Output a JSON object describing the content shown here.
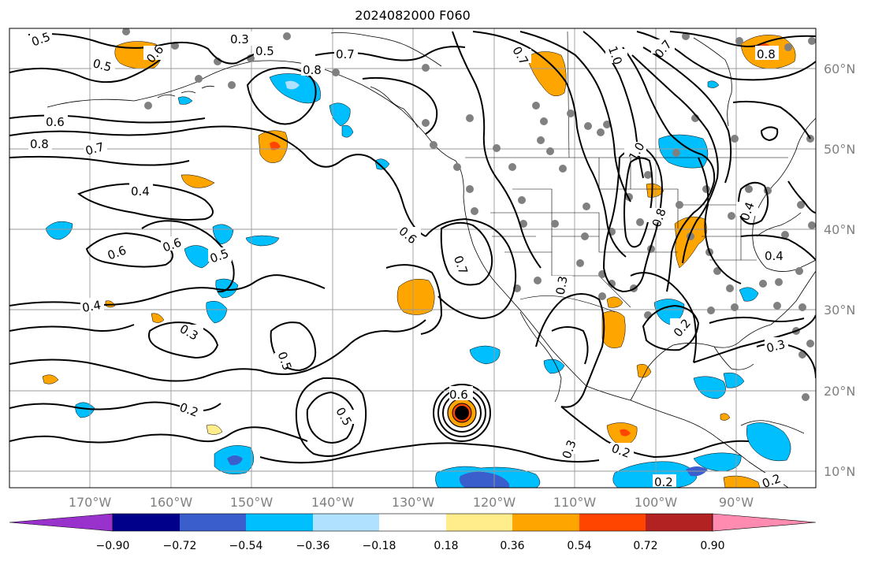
{
  "title": "2024082000 F060",
  "lat_labels": [
    "60°N",
    "50°N",
    "40°N",
    "30°N",
    "20°N",
    "10°N"
  ],
  "lon_labels": [
    "170°W",
    "160°W",
    "150°W",
    "140°W",
    "130°W",
    "120°W",
    "110°W",
    "100°W",
    "90°W"
  ],
  "colorbar": {
    "tick_labels": [
      "−0.90",
      "−0.72",
      "−0.54",
      "−0.36",
      "−0.18",
      "0.18",
      "0.36",
      "0.54",
      "0.72",
      "0.90"
    ],
    "colors": [
      "#9932CC",
      "#00008B",
      "#3A5FCD",
      "#00BFFF",
      "#B0E2FF",
      "#FFFFFF",
      "#FFEC8B",
      "#FFA500",
      "#FF4500",
      "#B22222",
      "#FF8CB0"
    ]
  },
  "contour_labels": [
    "0.5",
    "0.3",
    "0.5",
    "0.7",
    "0.8",
    "0.6",
    "0.5",
    "0.6",
    "0.8",
    "0.7",
    "0.4",
    "0.6",
    "0.6",
    "0.5",
    "0.4",
    "0.3",
    "0.5",
    "0.2",
    "0.5",
    "0.6",
    "0.7",
    "0.6",
    "0.3",
    "0.2",
    "0.3",
    "0.2",
    "1.0",
    "0.7",
    "1.0",
    "0.8",
    "0.4",
    "0.8",
    "0.4",
    "0.3",
    "0.2",
    "0.2",
    "0.7"
  ]
}
